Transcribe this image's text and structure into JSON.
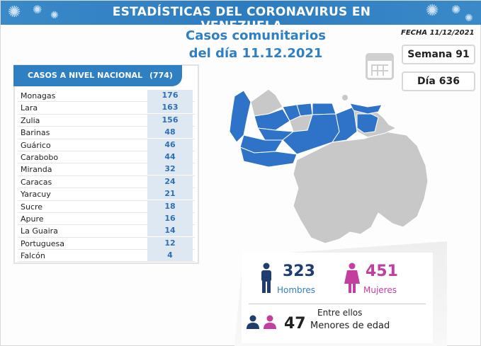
{
  "header": {
    "title": "ESTADÍSTICAS DEL CORONAVIRUS EN VENEZUELA"
  },
  "subtitle": {
    "line1": "Casos comunitarios",
    "line2": "del día 11.12.2021"
  },
  "fecha": "FECHA 11/12/2021",
  "semana": "Semana 91",
  "dia": "Día 636",
  "table": {
    "title": "CASOS A NIVEL NACIONAL",
    "total": "(774)",
    "rows": [
      {
        "state": "Monagas",
        "cases": "176"
      },
      {
        "state": "Lara",
        "cases": "163"
      },
      {
        "state": "Zulia",
        "cases": "156"
      },
      {
        "state": "Barinas",
        "cases": "48"
      },
      {
        "state": "Guárico",
        "cases": "46"
      },
      {
        "state": "Carabobo",
        "cases": "44"
      },
      {
        "state": "Miranda",
        "cases": "32"
      },
      {
        "state": "Caracas",
        "cases": "24"
      },
      {
        "state": "Yaracuy",
        "cases": "21"
      },
      {
        "state": "Sucre",
        "cases": "18"
      },
      {
        "state": "Apure",
        "cases": "16"
      },
      {
        "state": "La Guaira",
        "cases": "14"
      },
      {
        "state": "Portuguesa",
        "cases": "12"
      },
      {
        "state": "Falcón",
        "cases": "4"
      }
    ]
  },
  "stats": {
    "hombres": "323",
    "hombres_label": "Hombres",
    "mujeres": "451",
    "mujeres_label": "Mujeres",
    "entre": "Entre ellos",
    "menores": "47",
    "menores_label": "Menores de edad"
  },
  "colors": {
    "primary": "#2f7fc3",
    "map_active": "#2f73c9",
    "map_inactive": "#c8c8c8",
    "female": "#c23fa0",
    "male": "#1f3d6e"
  }
}
